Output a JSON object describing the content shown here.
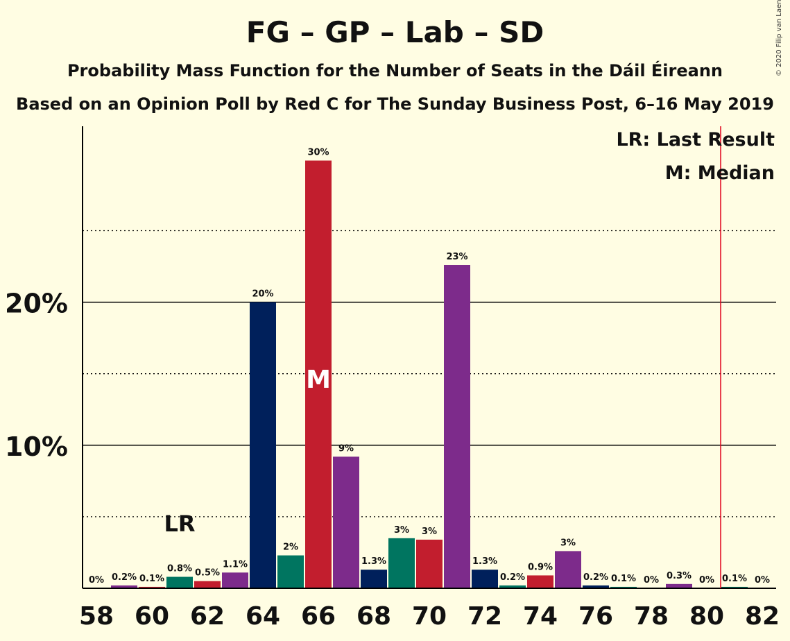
{
  "title": "FG – GP – Lab – SD",
  "subtitle": "Probability Mass Function for the Number of Seats in the Dáil Éireann",
  "subtitle2": "Based on an Opinion Poll by Red C for The Sunday Business Post, 6–16 May 2019",
  "copyright": "© 2020 Filip van Laenen",
  "legend": {
    "last_result": "LR: Last Result",
    "median": "M: Median"
  },
  "markers": {
    "lr_label": "LR",
    "median_label": "M"
  },
  "colors": {
    "background": "#FFFDE3",
    "navy": "#00205B",
    "green": "#007560",
    "red": "#C21E2E",
    "purple": "#7D2B8B",
    "majority_line": "#E0001A"
  },
  "chart_data": {
    "type": "bar",
    "x": [
      58,
      59,
      60,
      61,
      62,
      63,
      64,
      65,
      66,
      67,
      68,
      69,
      70,
      71,
      72,
      73,
      74,
      75,
      76,
      77,
      78,
      79,
      80,
      81,
      82
    ],
    "values": [
      0,
      0.2,
      0.1,
      0.8,
      0.5,
      1.1,
      20,
      2.3,
      29.9,
      9.2,
      1.3,
      3.5,
      3.4,
      22.6,
      1.3,
      0.2,
      0.9,
      2.6,
      0.2,
      0.1,
      0,
      0.3,
      0,
      0.1,
      0
    ],
    "labels": [
      "0%",
      "0.2%",
      "0.1%",
      "0.8%",
      "0.5%",
      "1.1%",
      "20%",
      "2%",
      "30%",
      "9%",
      "1.3%",
      "3%",
      "3%",
      "23%",
      "1.3%",
      "0.2%",
      "0.9%",
      "3%",
      "0.2%",
      "0.1%",
      "0%",
      "0.3%",
      "0%",
      "0.1%",
      "0%"
    ],
    "bar_colors": [
      "navy",
      "purple",
      "red",
      "green",
      "red",
      "purple",
      "navy",
      "green",
      "red",
      "purple",
      "navy",
      "green",
      "red",
      "purple",
      "navy",
      "green",
      "red",
      "purple",
      "navy",
      "green",
      "red",
      "purple",
      "navy",
      "green",
      "red"
    ],
    "x_ticks": [
      58,
      60,
      62,
      64,
      66,
      68,
      70,
      72,
      74,
      76,
      78,
      80,
      82
    ],
    "x_tick_labels": [
      "58",
      "60",
      "62",
      "64",
      "66",
      "68",
      "70",
      "72",
      "74",
      "76",
      "78",
      "80",
      "82"
    ],
    "y_ticks_major": [
      10,
      20
    ],
    "y_tick_labels": [
      "10%",
      "20%"
    ],
    "y_ticks_minor": [
      5,
      15,
      25
    ],
    "ylim": [
      0,
      32.3
    ],
    "last_result_seat": 61,
    "median_seat": 66,
    "majority_seat": 80.5,
    "grid": true
  }
}
